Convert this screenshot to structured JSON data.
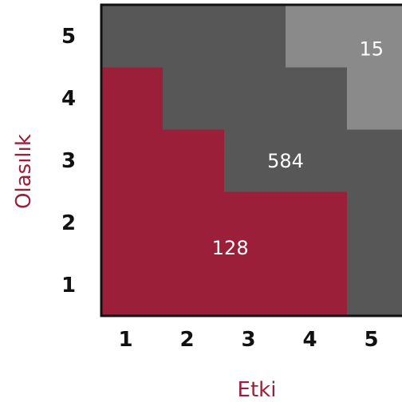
{
  "chart_data": {
    "type": "heatmap",
    "title": "",
    "xlabel": "Etki",
    "ylabel": "Olasılık",
    "x_ticks": [
      "1",
      "2",
      "3",
      "4",
      "5"
    ],
    "y_ticks": [
      "1",
      "2",
      "3",
      "4",
      "5"
    ],
    "grid": false,
    "zones": [
      {
        "name": "low",
        "color": "#9b1f38",
        "label": "128",
        "cells": [
          [
            1,
            1
          ],
          [
            1,
            2
          ],
          [
            1,
            3
          ],
          [
            1,
            4
          ],
          [
            2,
            1
          ],
          [
            2,
            2
          ],
          [
            2,
            3
          ],
          [
            3,
            1
          ],
          [
            3,
            2
          ],
          [
            4,
            1
          ],
          [
            4,
            2
          ]
        ]
      },
      {
        "name": "medium",
        "color": "#575757",
        "label": "584",
        "cells": [
          [
            1,
            5
          ],
          [
            2,
            4
          ],
          [
            2,
            5
          ],
          [
            3,
            3
          ],
          [
            3,
            4
          ],
          [
            3,
            5
          ],
          [
            4,
            3
          ],
          [
            4,
            4
          ],
          [
            5,
            1
          ],
          [
            5,
            2
          ],
          [
            5,
            3
          ]
        ]
      },
      {
        "name": "high",
        "color": "#8a8a8a",
        "label": "15",
        "cells": [
          [
            4,
            5
          ],
          [
            5,
            4
          ],
          [
            5,
            5
          ]
        ]
      }
    ],
    "axis_label_color": "#9b1f38",
    "tick_color": "#111111"
  }
}
